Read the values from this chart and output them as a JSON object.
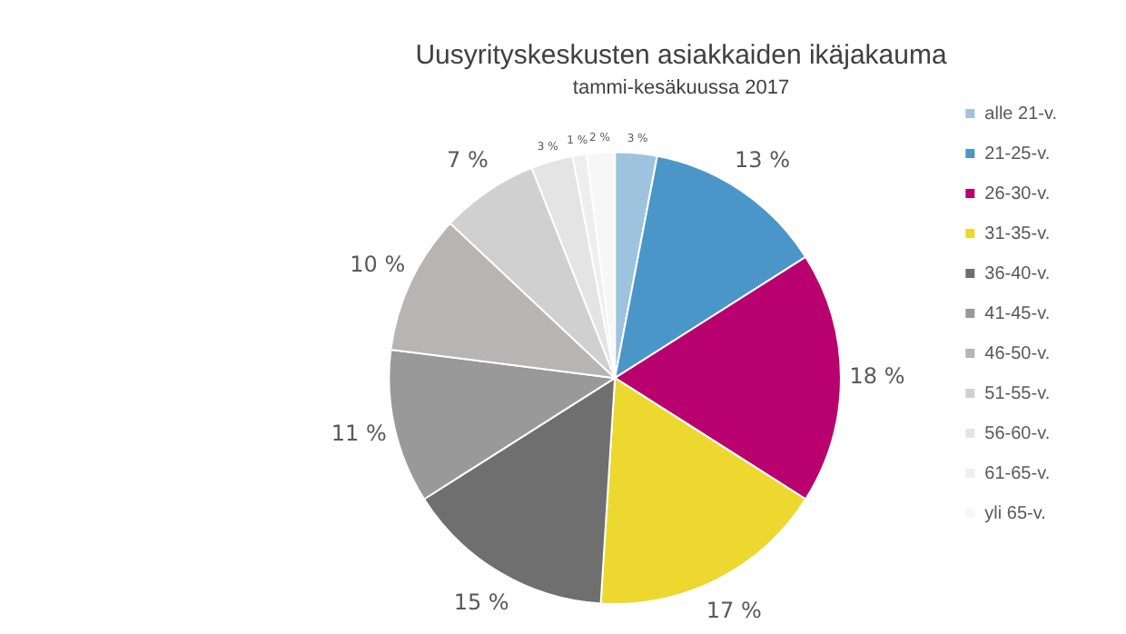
{
  "chart_data": {
    "type": "pie",
    "title": "Uusyrityskeskusten asiakkaiden ikäjakauma",
    "subtitle": "tammi-kesäkuussa 2017",
    "categories": [
      "alle 21-v.",
      "21-25-v.",
      "26-30-v.",
      "31-35-v.",
      "36-40-v.",
      "41-45-v.",
      "46-50-v.",
      "51-55-v.",
      "56-60-v.",
      "61-65-v.",
      "yli 65-v."
    ],
    "values": [
      3,
      13,
      18,
      17,
      15,
      11,
      10,
      7,
      3,
      1,
      2
    ],
    "value_labels": [
      "3 %",
      "13 %",
      "18 %",
      "17 %",
      "15 %",
      "11 %",
      "10 %",
      "7 %",
      "3 %",
      "1 %",
      "2 %"
    ],
    "colors": [
      "#9ec3df",
      "#4b96c8",
      "#b8006e",
      "#ecd82e",
      "#6f6f6f",
      "#999999",
      "#b7b4b4",
      "#d0d0d0",
      "#e4e4e4",
      "#eeeeee",
      "#f7f7f7"
    ],
    "legend": "right"
  }
}
